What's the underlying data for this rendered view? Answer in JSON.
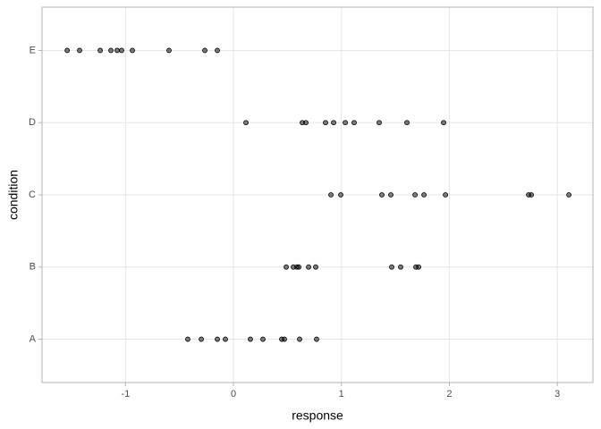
{
  "chart_data": {
    "type": "strip",
    "x_label": "response",
    "y_label": "condition",
    "categories": [
      "A",
      "B",
      "C",
      "D",
      "E"
    ],
    "values": [
      [
        -0.423,
        -0.298,
        -0.149,
        -0.075,
        0.157,
        0.273,
        0.447,
        0.472,
        0.613,
        0.77
      ],
      [
        0.489,
        0.555,
        0.588,
        0.605,
        0.696,
        0.762,
        1.466,
        1.549,
        1.69,
        1.715
      ],
      [
        0.903,
        0.994,
        1.375,
        1.458,
        1.682,
        1.765,
        1.964,
        2.734,
        2.759,
        3.107
      ],
      [
        0.116,
        0.638,
        0.671,
        0.853,
        0.928,
        1.036,
        1.118,
        1.35,
        1.607,
        1.947
      ],
      [
        -1.54,
        -1.425,
        -1.234,
        -1.135,
        -1.077,
        -1.036,
        -0.936,
        -0.597,
        -0.265,
        -0.149
      ]
    ],
    "color": "#000000",
    "xlim": [
      -1.773,
      3.33
    ],
    "xticks": [
      -1,
      0,
      1,
      2,
      3
    ],
    "grid": true
  }
}
